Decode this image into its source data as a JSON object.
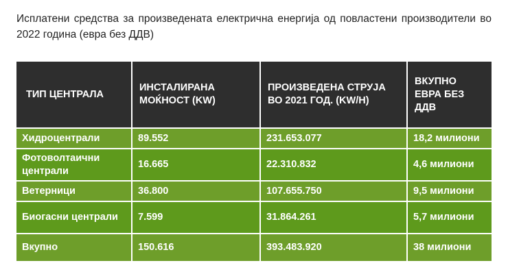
{
  "caption": "Исплатени средства за произведената електрична енергија од повластени производители во 2022 година (евра без ДДВ)",
  "table": {
    "headers": [
      "ТИП ЦЕНТРАЛА",
      "ИНСТАЛИРАНА МОЌНОСТ (KW)",
      "ПРОИЗВЕДЕНА СТРУЈА ВО 2021 ГОД. (KW/H)",
      "ВКУПНО ЕВРА БЕЗ ДДВ"
    ],
    "rows": [
      [
        "Хидроцентрали",
        "89.552",
        "231.653.077",
        "18,2 милиони"
      ],
      [
        "Фотоволтаични централи",
        "16.665",
        "22.310.832",
        "4,6 милиони"
      ],
      [
        "Ветерници",
        "36.800",
        "107.655.750",
        "9,5 милиони"
      ],
      [
        "Биогасни централи",
        "7.599",
        "31.864.261",
        "5,7 милиони"
      ],
      [
        "Вкупно",
        "150.616",
        "393.483.920",
        "38 милиони"
      ]
    ]
  },
  "colors": {
    "header_bg": "#2e2e2e",
    "row_green_light": "#6e9e2a",
    "row_green_dark": "#5e9a1c",
    "text_on_table": "#ffffff"
  }
}
